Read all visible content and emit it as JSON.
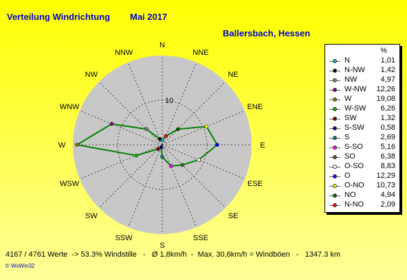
{
  "header": {
    "title": "Verteilung Windrichtung",
    "period": "Mai 2017",
    "location": "Ballersbach, Hessen"
  },
  "legend": {
    "unit": "%"
  },
  "footer": "4167 / 4761 Werte  -> 53.3% Windstille   -   Ø 1,8km/h  -  Max. 30,6km/h = Windböen   -   1347.3 km",
  "credit": "© WsWin32",
  "colors": {
    "grid_bg": "#c8c8c8",
    "series": "#008000",
    "background": "#ffff00",
    "title": "#0000cc"
  },
  "chart_data": {
    "type": "radar",
    "title": "Verteilung Windrichtung",
    "rlabel": "10",
    "rmax": 20,
    "directions": [
      "N",
      "NNE",
      "NE",
      "ENE",
      "E",
      "ESE",
      "SE",
      "SSE",
      "S",
      "SSW",
      "SW",
      "WSW",
      "W",
      "WNW",
      "NW",
      "NNW"
    ],
    "values": [
      1.01,
      2.09,
      4.94,
      10.73,
      12.29,
      8.83,
      6.38,
      5.16,
      2.69,
      0.58,
      1.32,
      6.26,
      19.08,
      12.26,
      4.97,
      1.42
    ],
    "legend": [
      {
        "label": "N",
        "value": "1,01",
        "color": "#00c0c0"
      },
      {
        "label": "N-NW",
        "value": "1,42",
        "color": "#000000"
      },
      {
        "label": "NW",
        "value": "4,97",
        "color": "#808080"
      },
      {
        "label": "W-NW",
        "value": "12,26",
        "color": "#800080"
      },
      {
        "label": "W",
        "value": "19,08",
        "color": "#808000"
      },
      {
        "label": "W-SW",
        "value": "6,26",
        "color": "#00c000"
      },
      {
        "label": "SW",
        "value": "1,32",
        "color": "#800000"
      },
      {
        "label": "S-SW",
        "value": "0,58",
        "color": "#000080"
      },
      {
        "label": "S",
        "value": "2,69",
        "color": "#008080"
      },
      {
        "label": "S-SO",
        "value": "5,16",
        "color": "#ff00ff"
      },
      {
        "label": "SO",
        "value": "6,38",
        "color": "#406040"
      },
      {
        "label": "O-SO",
        "value": "8,83",
        "color": "#ffffff"
      },
      {
        "label": "O",
        "value": "12,29",
        "color": "#0000ff"
      },
      {
        "label": "O-NO",
        "value": "10,73",
        "color": "#ffff00"
      },
      {
        "label": "NO",
        "value": "4,94",
        "color": "#006000"
      },
      {
        "label": "N-NO",
        "value": "2,09",
        "color": "#ff0000"
      }
    ]
  }
}
